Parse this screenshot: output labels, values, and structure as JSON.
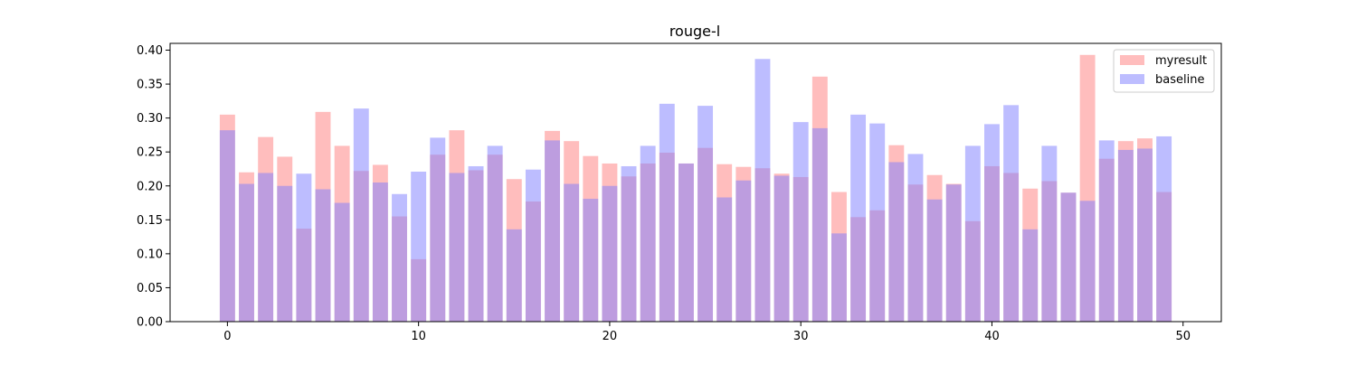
{
  "chart_data": {
    "type": "bar",
    "title": "rouge-l",
    "xlabel": "",
    "ylabel": "",
    "xlim": [
      -3,
      52
    ],
    "ylim": [
      0,
      0.41
    ],
    "xticks": [
      0,
      10,
      20,
      30,
      40,
      50
    ],
    "yticks": [
      0.0,
      0.05,
      0.1,
      0.15,
      0.2,
      0.25,
      0.3,
      0.35,
      0.4
    ],
    "ytick_labels": [
      "0.00",
      "0.05",
      "0.10",
      "0.15",
      "0.20",
      "0.25",
      "0.30",
      "0.35",
      "0.40"
    ],
    "xtick_labels": [
      "0",
      "10",
      "20",
      "30",
      "40",
      "50"
    ],
    "grid": false,
    "legend_position": "top-right",
    "x": [
      0,
      1,
      2,
      3,
      4,
      5,
      6,
      7,
      8,
      9,
      10,
      11,
      12,
      13,
      14,
      15,
      16,
      17,
      18,
      19,
      20,
      21,
      22,
      23,
      24,
      25,
      26,
      27,
      28,
      29,
      30,
      31,
      32,
      33,
      34,
      35,
      36,
      37,
      38,
      39,
      40,
      41,
      42,
      43,
      44,
      45,
      46,
      47,
      48,
      49
    ],
    "series": [
      {
        "name": "myresult",
        "color": "#ff8080",
        "values": [
          0.305,
          0.22,
          0.272,
          0.243,
          0.137,
          0.309,
          0.259,
          0.222,
          0.231,
          0.155,
          0.092,
          0.246,
          0.282,
          0.223,
          0.246,
          0.21,
          0.177,
          0.281,
          0.266,
          0.244,
          0.233,
          0.214,
          0.233,
          0.249,
          0.233,
          0.256,
          0.232,
          0.228,
          0.226,
          0.218,
          0.213,
          0.361,
          0.191,
          0.154,
          0.164,
          0.26,
          0.202,
          0.216,
          0.203,
          0.148,
          0.229,
          0.219,
          0.196,
          0.207,
          0.19,
          0.393,
          0.24,
          0.266,
          0.27,
          0.191
        ]
      },
      {
        "name": "baseline",
        "color": "#8080ff",
        "values": [
          0.282,
          0.203,
          0.219,
          0.2,
          0.218,
          0.195,
          0.175,
          0.314,
          0.205,
          0.188,
          0.221,
          0.271,
          0.219,
          0.229,
          0.259,
          0.136,
          0.224,
          0.267,
          0.203,
          0.181,
          0.2,
          0.229,
          0.259,
          0.321,
          0.233,
          0.318,
          0.183,
          0.208,
          0.387,
          0.215,
          0.294,
          0.285,
          0.13,
          0.305,
          0.292,
          0.235,
          0.247,
          0.18,
          0.202,
          0.259,
          0.291,
          0.319,
          0.136,
          0.259,
          0.19,
          0.178,
          0.267,
          0.253,
          0.255,
          0.273
        ]
      }
    ]
  }
}
